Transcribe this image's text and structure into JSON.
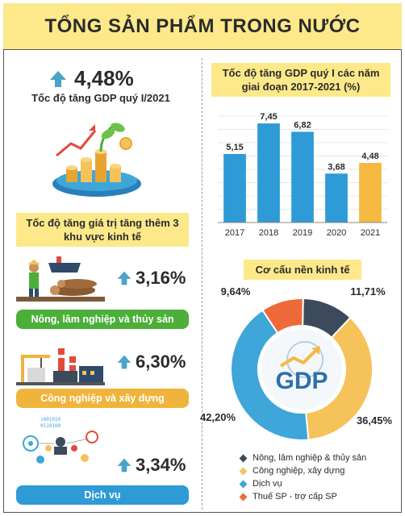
{
  "title": "TỔNG SẢN PHẨM TRONG NƯỚC",
  "headline": {
    "value": "4,48%",
    "label": "Tốc độ tăng GDP quý I/2021"
  },
  "sectors_header": "Tốc độ tăng giá trị tăng thêm 3 khu vực kinh tế",
  "sectors": [
    {
      "name": "Nông, lâm nghiệp và thủy sản",
      "value": "3,16%",
      "color": "#4caf3a"
    },
    {
      "name": "Công nghiệp và xây dựng",
      "value": "6,30%",
      "color": "#f0b43c"
    },
    {
      "name": "Dịch vụ",
      "value": "3,34%",
      "color": "#2e9ad6"
    }
  ],
  "bar_header": "Tốc độ tăng GDP quý I các năm giai đoạn 2017-2021 (%)",
  "donut_header": "Cơ cấu nền kinh tế",
  "donut_center": "GDP",
  "colors": {
    "banner": "#fde98a",
    "arrow": "#4aa3c8",
    "bar": "#2e9ad6",
    "bar_highlight": "#f5b942"
  },
  "chart_data": [
    {
      "type": "bar",
      "title": "Tốc độ tăng GDP quý I các năm giai đoạn 2017-2021 (%)",
      "categories": [
        "2017",
        "2018",
        "2019",
        "2020",
        "2021"
      ],
      "values": [
        5.15,
        7.45,
        6.82,
        3.68,
        4.48
      ],
      "labels": [
        "5,15",
        "7,45",
        "6,82",
        "3,68",
        "4,48"
      ],
      "colors": [
        "#2e9ad6",
        "#2e9ad6",
        "#2e9ad6",
        "#2e9ad6",
        "#f5b942"
      ],
      "ylim": [
        0,
        8
      ],
      "grid": true
    },
    {
      "type": "pie",
      "title": "Cơ cấu nền kinh tế",
      "categories": [
        "Nông, lâm nghiệp & thủy sản",
        "Công nghiệp, xây dựng",
        "Dịch vụ",
        "Thuế SP - trợ cấp SP"
      ],
      "values": [
        11.71,
        36.45,
        42.2,
        9.64
      ],
      "labels": [
        "11,71%",
        "36,45%",
        "42,20%",
        "9,64%"
      ],
      "colors": [
        "#3d4a5c",
        "#f5c35a",
        "#3ea6d8",
        "#ef6a3a"
      ],
      "legend": "bottom"
    }
  ]
}
